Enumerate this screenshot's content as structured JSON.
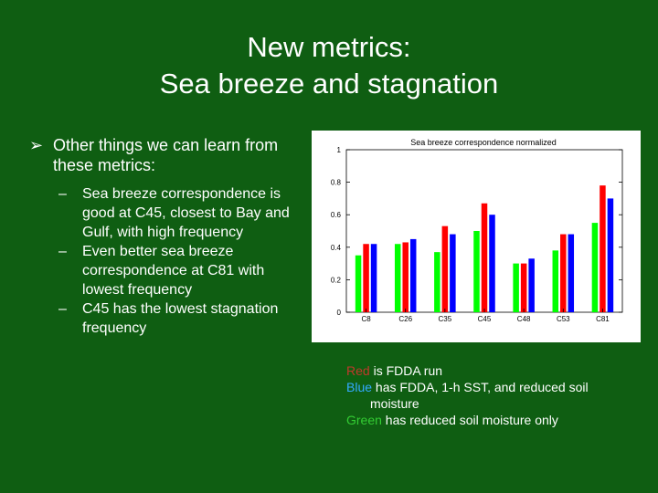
{
  "slide": {
    "title_line1": "New metrics:",
    "title_line2": "Sea breeze and stagnation",
    "bullet_main": "Other things we can learn from these metrics:",
    "subbullets": [
      "Sea breeze correspondence is good at C45, closest to Bay and Gulf, with high frequency",
      "Even better sea breeze correspondence at C81 with lowest frequency",
      "C45 has the lowest stagnation frequency"
    ],
    "legend": {
      "red_word": "Red",
      "red_rest": " is FDDA run",
      "blue_word": "Blue",
      "blue_rest1": " has FDDA, 1-h SST, and reduced soil",
      "blue_rest2": "moisture",
      "green_word": "Green",
      "green_rest": " has reduced soil moisture only"
    }
  },
  "colors": {
    "background": "#0f5e12",
    "red": "#ff0000",
    "blue": "#0000ff",
    "green": "#00ff00",
    "legend_red": "#c0392b",
    "legend_blue": "#33aaff",
    "legend_green": "#33cc33"
  },
  "chart_data": {
    "type": "bar",
    "title": "Sea breeze correspondence normalized",
    "categories": [
      "C8",
      "C26",
      "C35",
      "C45",
      "C48",
      "C53",
      "C81"
    ],
    "series": [
      {
        "color": "#00ff00",
        "values": [
          0.35,
          0.42,
          0.37,
          0.5,
          0.3,
          0.38,
          0.55
        ]
      },
      {
        "color": "#ff0000",
        "values": [
          0.42,
          0.43,
          0.53,
          0.67,
          0.3,
          0.48,
          0.78
        ]
      },
      {
        "color": "#0000ff",
        "values": [
          0.42,
          0.45,
          0.48,
          0.6,
          0.33,
          0.48,
          0.7
        ]
      }
    ],
    "yticks": [
      "0",
      "0.2",
      "0.4",
      "0.6",
      "0.8",
      "1"
    ],
    "ylim": [
      0,
      1
    ],
    "grid": false
  }
}
